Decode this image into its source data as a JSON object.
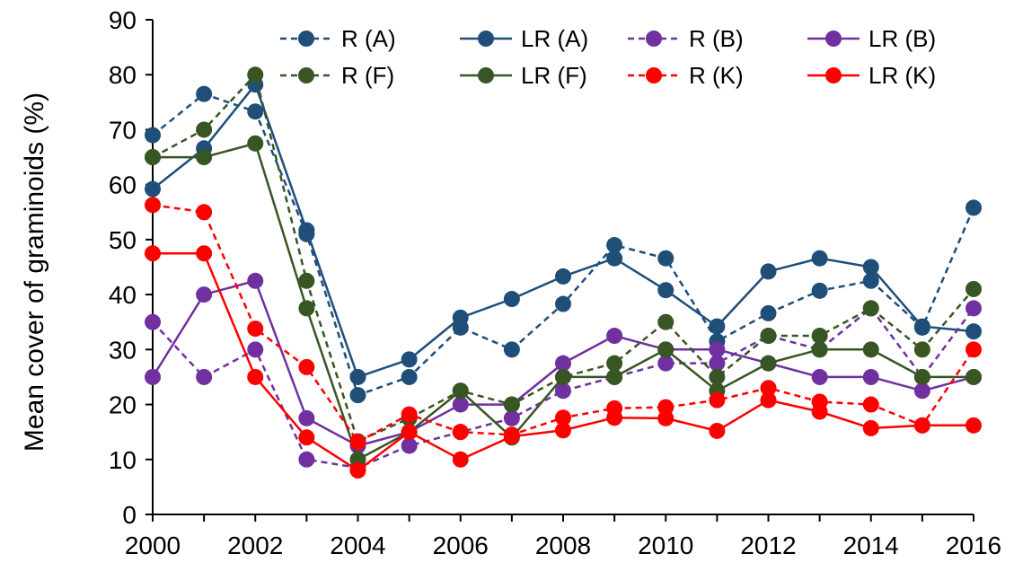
{
  "chart_data": {
    "type": "line",
    "title": "",
    "xlabel": "",
    "ylabel": "Mean cover of graminoids (%)",
    "xlim": [
      2000,
      2016
    ],
    "ylim": [
      0,
      90
    ],
    "x_ticks": [
      2000,
      2002,
      2004,
      2006,
      2008,
      2010,
      2012,
      2014,
      2016
    ],
    "y_ticks": [
      0,
      10,
      20,
      30,
      40,
      50,
      60,
      70,
      80,
      90
    ],
    "grid": false,
    "legend_position": "top-right",
    "x": [
      2000,
      2001,
      2002,
      2003,
      2004,
      2005,
      2006,
      2007,
      2008,
      2009,
      2010,
      2011,
      2012,
      2013,
      2014,
      2015,
      2016
    ],
    "series": [
      {
        "name": "R (A)",
        "color": "#1F4E79",
        "dash": "dashed",
        "values": [
          69,
          76.5,
          73.3,
          51,
          21.7,
          25,
          34,
          30,
          38.3,
          49,
          46.6,
          31.5,
          36.6,
          40.7,
          42.5,
          34,
          55.8
        ]
      },
      {
        "name": "LR (A)",
        "color": "#1F4E79",
        "dash": "solid",
        "values": [
          59.2,
          66.6,
          78.2,
          51.7,
          25,
          28.2,
          35.8,
          39.2,
          43.3,
          46.6,
          40.8,
          34.2,
          44.2,
          46.6,
          45,
          34.2,
          33.3
        ]
      },
      {
        "name": "R (B)",
        "color": "#7030A0",
        "dash": "dashed",
        "values": [
          35,
          25,
          30,
          10,
          8.5,
          12.5,
          15,
          17.5,
          22.5,
          25,
          27.5,
          27.5,
          32.5,
          30,
          37.5,
          25,
          37.5
        ]
      },
      {
        "name": "LR (B)",
        "color": "#7030A0",
        "dash": "solid",
        "values": [
          25,
          40,
          42.5,
          17.5,
          12.5,
          15,
          20,
          20,
          27.5,
          32.5,
          30,
          30,
          27.5,
          25,
          25,
          22.5,
          25
        ]
      },
      {
        "name": "R (F)",
        "color": "#375623",
        "dash": "dashed",
        "values": [
          65,
          70,
          80,
          42.5,
          13.3,
          17.5,
          22.5,
          20,
          25,
          27.5,
          35,
          25,
          32.5,
          32.5,
          37.5,
          30,
          41
        ]
      },
      {
        "name": "LR (F)",
        "color": "#375623",
        "dash": "solid",
        "values": [
          65,
          65,
          67.5,
          37.5,
          10,
          15,
          22.5,
          14,
          25,
          25,
          30,
          22.5,
          27.5,
          30,
          30,
          25,
          25
        ]
      },
      {
        "name": "R (K)",
        "color": "#FF0000",
        "dash": "dashed",
        "values": [
          56.3,
          55,
          33.8,
          26.8,
          13.2,
          18.2,
          15,
          14.5,
          17.6,
          19.3,
          19.5,
          20.8,
          23,
          20.5,
          20,
          16.2,
          30
        ]
      },
      {
        "name": "LR (K)",
        "color": "#FF0000",
        "dash": "solid",
        "values": [
          47.5,
          47.5,
          25,
          14,
          8,
          15,
          10,
          14.2,
          15.3,
          17.6,
          17.5,
          15.2,
          20.8,
          18.7,
          15.7,
          16.2,
          16.2
        ]
      }
    ]
  }
}
